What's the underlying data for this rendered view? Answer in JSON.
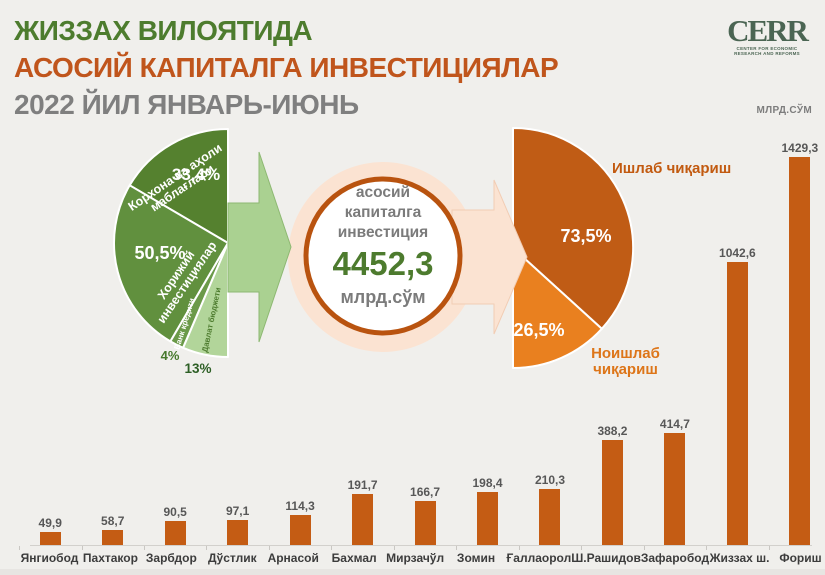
{
  "header": {
    "line1": "ЖИЗЗАХ ВИЛОЯТИДА",
    "line2": "АСОСИЙ КАПИТАЛГА ИНВЕСТИЦИЯЛАР",
    "line3": "2022 ЙИЛ ЯНВАРЬ-ИЮНЬ"
  },
  "logo": {
    "name": "CERR",
    "tagline1": "CENTER FOR ECONOMIC",
    "tagline2": "RESEARCH AND REFORMS"
  },
  "center_badge": {
    "label_line1": "асосий",
    "label_line2": "капиталга",
    "label_line3": "инвестиция",
    "value": "4452,3",
    "unit": "млрд.сўм"
  },
  "axis_unit_label": "МЛРД.СЎМ",
  "chart_data": [
    {
      "type": "pie",
      "name": "investment-sources-share",
      "orientation": "half-pie-open-left",
      "slices": [
        {
          "label": "Корхона ва аҳоли маблағлари",
          "value": 33.4,
          "display": "33,4%",
          "color": "#55812f"
        },
        {
          "label": "Хорижий инвестициялар",
          "value": 50.5,
          "display": "50,5%",
          "color": "#61903e"
        },
        {
          "label": "Банк кредити",
          "value": 4.0,
          "display": "4%",
          "color": "#6b9a49"
        },
        {
          "label": "Давлат бюджети",
          "value": 13.0,
          "display": "13%",
          "color": "#b2d59a"
        }
      ]
    },
    {
      "type": "pie",
      "name": "production-structure",
      "orientation": "half-pie-open-right",
      "slices": [
        {
          "label": "Ишлаб чиқариш",
          "value": 73.5,
          "display": "73,5%",
          "color": "#c05c15"
        },
        {
          "label": "Ноишлаб чиқариш",
          "value": 26.5,
          "display": "26,5%",
          "color": "#e9801f"
        }
      ]
    },
    {
      "type": "bar",
      "name": "districts-investment",
      "unit": "МЛРД.СЎМ",
      "bar_color": "#c45c14",
      "categories": [
        "Янгиобод",
        "Пахтакор",
        "Зарбдор",
        "Дўстлик",
        "Арнасой",
        "Бахмал",
        "Мирзачўл",
        "Зомин",
        "Ғаллаорол",
        "Ш.Рашидов",
        "Зафаробод",
        "Жиззах ш.",
        "Фориш"
      ],
      "values": [
        49.9,
        58.7,
        90.5,
        97.1,
        114.3,
        191.7,
        166.7,
        198.4,
        210.3,
        388.2,
        414.7,
        1042.6,
        1429.3
      ],
      "display_values": [
        "49,9",
        "58,7",
        "90,5",
        "97,1",
        "114,3",
        "191,7",
        "166,7",
        "198,4",
        "210,3",
        "388,2",
        "414,7",
        "1042,6",
        "1429,3"
      ],
      "ylim": [
        0,
        1500
      ]
    }
  ]
}
